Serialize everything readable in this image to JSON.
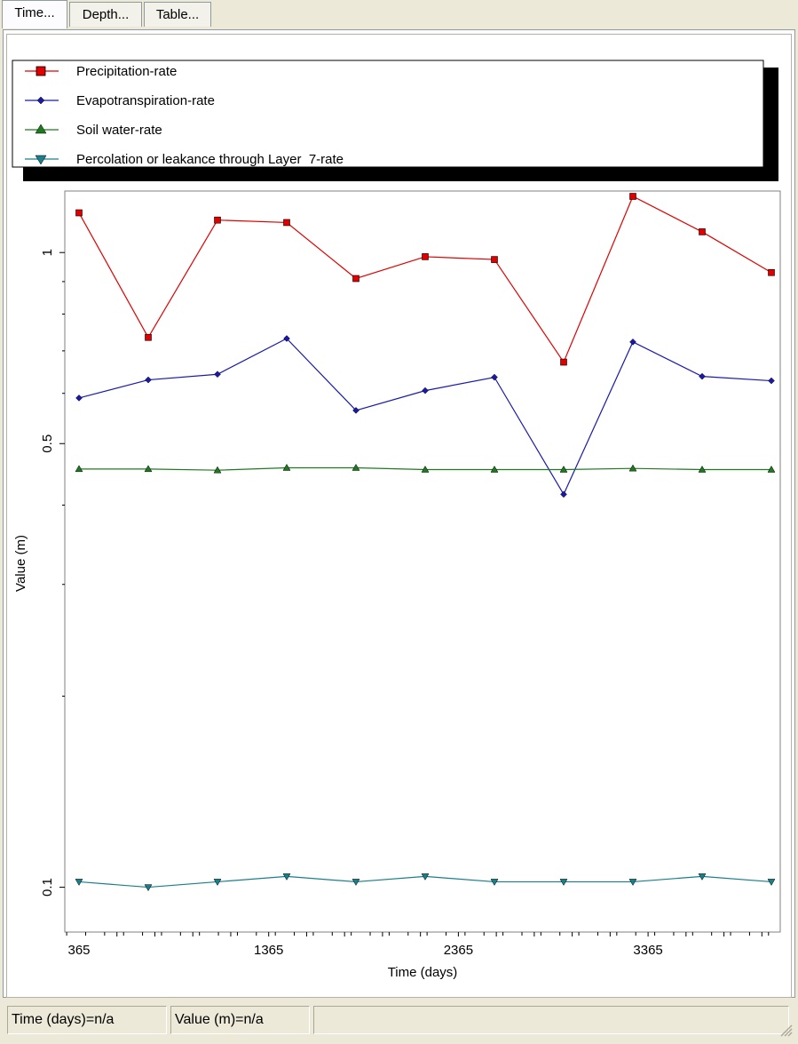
{
  "tabs": [
    {
      "label": "Time..."
    },
    {
      "label": "Depth..."
    },
    {
      "label": "Table..."
    }
  ],
  "status": {
    "time_readout": "Time (days)=n/a",
    "value_readout": "Value (m)=n/a",
    "extra": ""
  },
  "colors": {
    "precipitation": "#e00000",
    "evapotranspiration": "#1a1aaa",
    "soil_water": "#1f7a1f",
    "percolation": "#1a7f8a",
    "window_bg": "#ece9d8"
  },
  "chart_data": {
    "type": "line",
    "xlabel": "Time (days)",
    "ylabel": "Value (m)",
    "xlim": [
      365,
      4015
    ],
    "ylim": [
      0.085,
      1.25
    ],
    "x_ticks": [
      365,
      1365,
      2365,
      3365
    ],
    "y_ticks": [
      0.1,
      0.5,
      1
    ],
    "y_tick_labels": [
      "0.1",
      "0.5",
      "1"
    ],
    "legend_position": "top",
    "grid": false,
    "x": [
      365,
      730,
      1095,
      1460,
      1825,
      2190,
      2555,
      2920,
      3285,
      3650,
      4015
    ],
    "series": [
      {
        "name": "Precipitation-rate",
        "marker": "square",
        "color_key": "precipitation",
        "values": [
          1.155,
          0.735,
          1.125,
          1.115,
          0.91,
          0.985,
          0.975,
          0.672,
          1.226,
          1.078,
          0.93
        ]
      },
      {
        "name": "Evapotranspiration-rate",
        "marker": "diamond",
        "color_key": "evapotranspiration",
        "values": [
          0.59,
          0.63,
          0.643,
          0.732,
          0.564,
          0.606,
          0.636,
          0.416,
          0.723,
          0.638,
          0.628
        ]
      },
      {
        "name": "Soil water-rate",
        "marker": "triangle-up",
        "color_key": "soil_water",
        "values": [
          0.456,
          0.456,
          0.454,
          0.458,
          0.458,
          0.455,
          0.455,
          0.455,
          0.457,
          0.455,
          0.455
        ]
      },
      {
        "name": "Percolation or leakance through Layer  7-rate",
        "marker": "triangle-down",
        "color_key": "percolation",
        "values": [
          0.102,
          0.1,
          0.102,
          0.104,
          0.102,
          0.104,
          0.102,
          0.102,
          0.102,
          0.104,
          0.102
        ]
      }
    ]
  }
}
